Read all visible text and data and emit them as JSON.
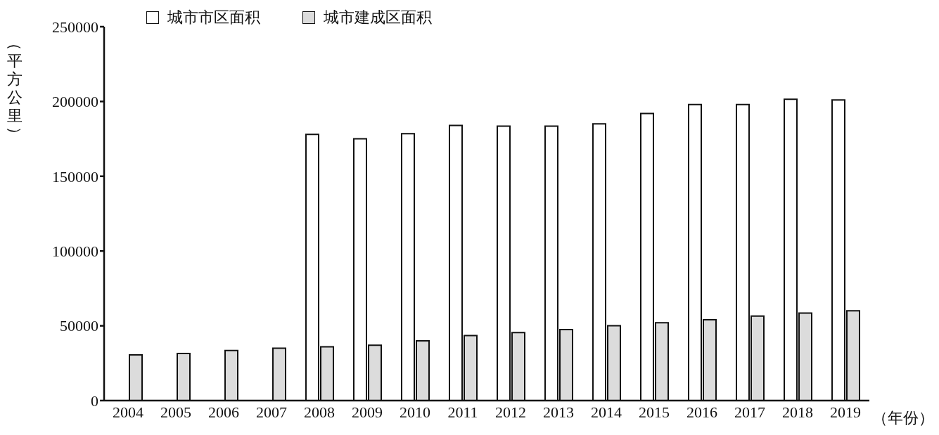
{
  "chart_data": {
    "type": "bar",
    "ylabel": "（平方公里）",
    "xlabel": "（年份）",
    "categories": [
      "2004",
      "2005",
      "2006",
      "2007",
      "2008",
      "2009",
      "2010",
      "2011",
      "2012",
      "2013",
      "2014",
      "2015",
      "2016",
      "2017",
      "2018",
      "2019"
    ],
    "series": [
      {
        "name": "城市市区面积",
        "color": "#ffffff",
        "values": [
          null,
          null,
          null,
          null,
          178000,
          175000,
          178500,
          184000,
          183500,
          183500,
          185000,
          192000,
          198000,
          198000,
          201500,
          201000
        ]
      },
      {
        "name": "城市建成区面积",
        "color": "#dcdcdc",
        "values": [
          30500,
          31500,
          33500,
          35000,
          36000,
          37000,
          40000,
          43500,
          45500,
          47500,
          50000,
          52000,
          54000,
          56500,
          58500,
          60000
        ]
      }
    ],
    "ylim": [
      0,
      250000
    ],
    "yticks": [
      0,
      50000,
      100000,
      150000,
      200000,
      250000
    ],
    "grid": false,
    "legend": "top left"
  }
}
